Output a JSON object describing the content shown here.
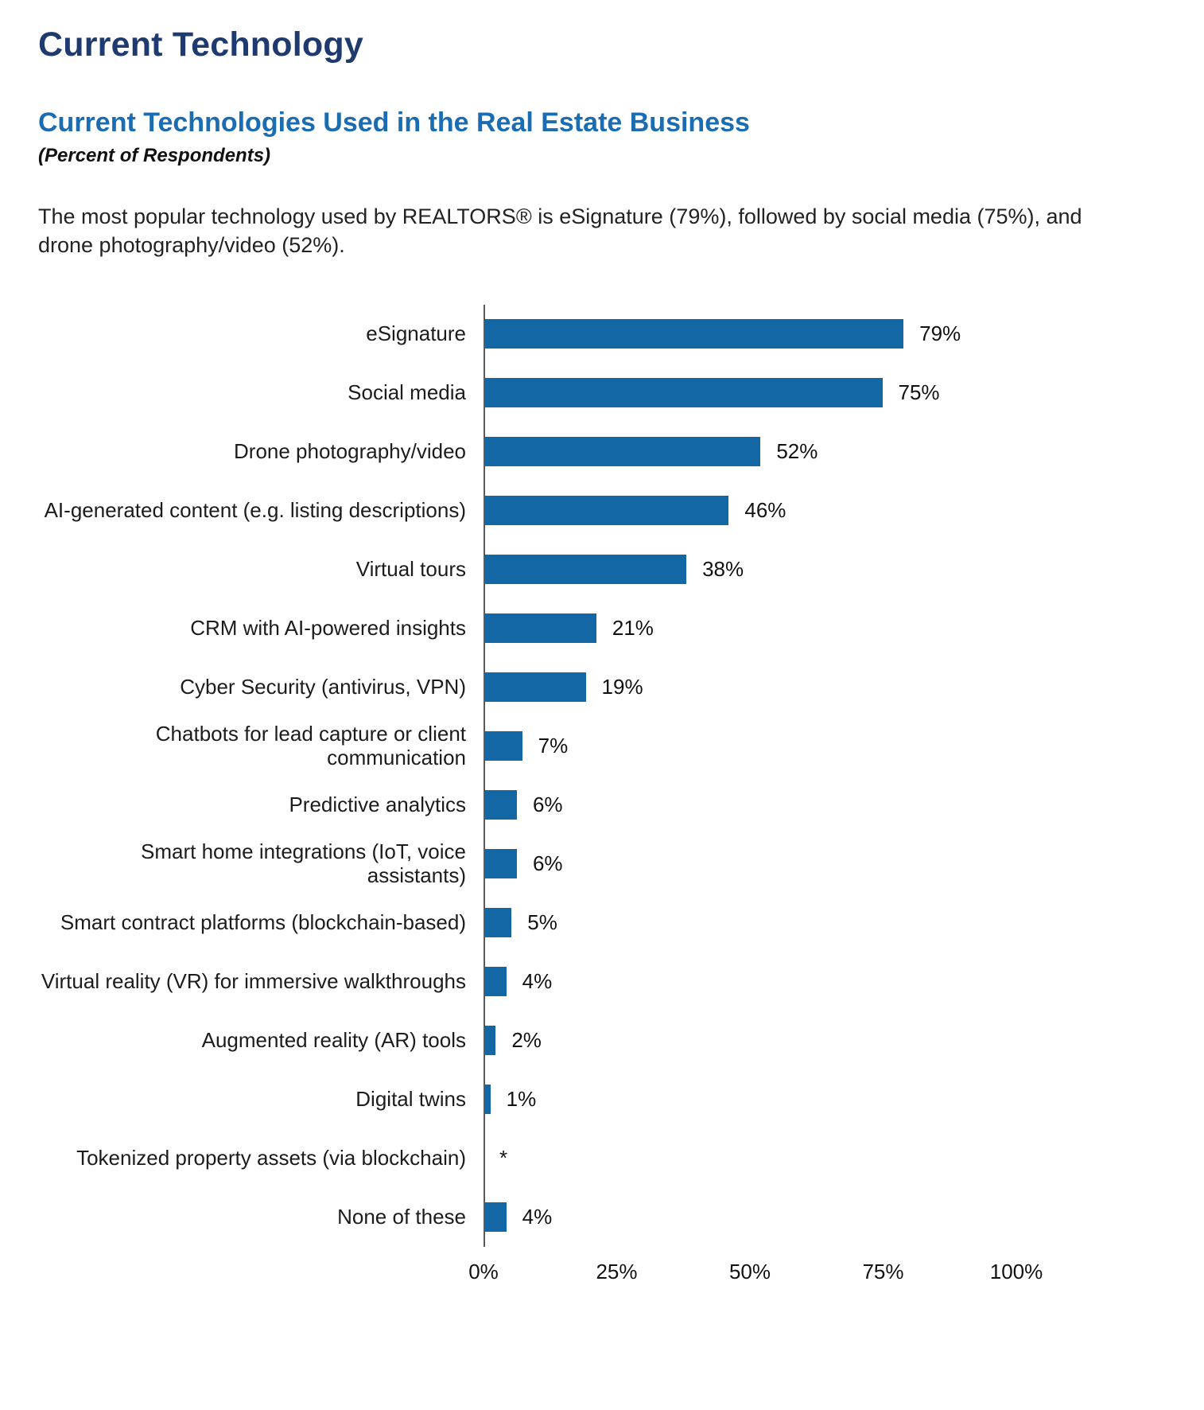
{
  "page": {
    "title": "Current Technology",
    "subtitle": "Current Technologies Used in the Real Estate Business",
    "subtitle_note": "(Percent of Respondents)",
    "intro": "The most popular technology used by REALTORS® is eSignature (79%), followed by social media (75%), and drone photography/video (52%)."
  },
  "colors": {
    "title": "#1e3a6e",
    "subtitle": "#1b6cb0",
    "bar": "#1467a5",
    "axis": "#5a5a5a"
  },
  "chart_data": {
    "type": "bar",
    "orientation": "horizontal",
    "title": "Current Technologies Used in the Real Estate Business",
    "subtitle": "(Percent of Respondents)",
    "xlabel": "",
    "ylabel": "",
    "xlim": [
      0,
      100
    ],
    "grid": false,
    "legend": false,
    "categories": [
      "eSignature",
      "Social media",
      "Drone photography/video",
      "AI-generated content (e.g. listing descriptions)",
      "Virtual tours",
      "CRM with AI-powered insights",
      "Cyber Security (antivirus, VPN)",
      "Chatbots for lead capture or client communication",
      "Predictive analytics",
      "Smart home integrations (IoT, voice assistants)",
      "Smart contract platforms (blockchain-based)",
      "Virtual reality (VR) for immersive walkthroughs",
      "Augmented reality (AR) tools",
      "Digital twins",
      "Tokenized property assets (via blockchain)",
      "None of these"
    ],
    "values": [
      79,
      75,
      52,
      46,
      38,
      21,
      19,
      7,
      6,
      6,
      5,
      4,
      2,
      1,
      0,
      4
    ],
    "value_labels": [
      "79%",
      "75%",
      "52%",
      "46%",
      "38%",
      "21%",
      "19%",
      "7%",
      "6%",
      "6%",
      "5%",
      "4%",
      "2%",
      "1%",
      "*",
      "4%"
    ],
    "x_ticks": [
      "0%",
      "25%",
      "50%",
      "75%",
      "100%"
    ]
  }
}
